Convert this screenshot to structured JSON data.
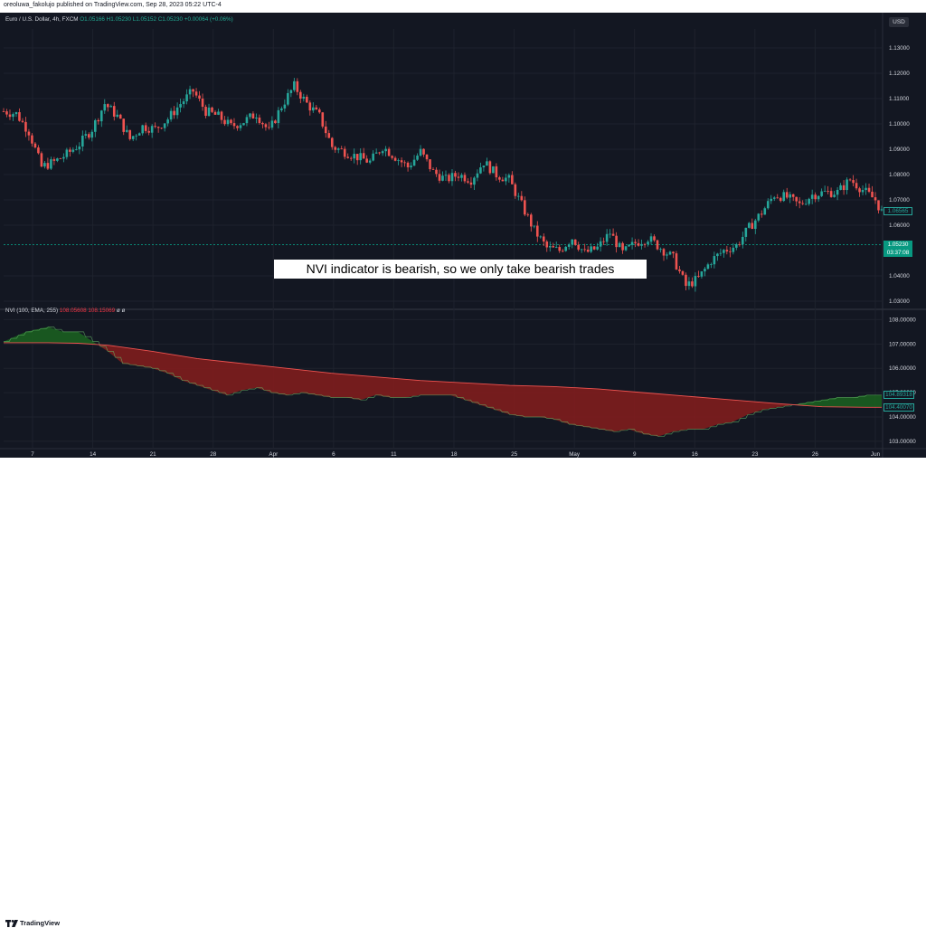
{
  "header": {
    "text": "oreoluwa_fakolujo published on TradingView.com, Sep 28, 2023 05:22 UTC-4"
  },
  "currency_badge": "USD",
  "legend_main": {
    "symbol": "Euro / U.S. Dollar, 4h, FXCM",
    "ohlc": "O1.05166 H1.05230 L1.05152 C1.05230 +0.00064 (+0.06%)"
  },
  "legend_nvi": {
    "name": "NVI (100, EMA, 255)",
    "v1": "108.05608",
    "v2": "108.15069",
    "extra": "ø ø"
  },
  "annotation": "NVI indicator is bearish, so we only take bearish trades",
  "footer": {
    "brand": "TradingView"
  },
  "colors": {
    "background": "#131722",
    "bullish": "#26a69a",
    "bearish": "#ef5350",
    "nvi_bull_fill": "#1b5e20",
    "nvi_bear_fill": "#7f1d1d",
    "grid": "#1e222d",
    "axis_text": "#d1d4dc"
  },
  "price_tags": [
    {
      "label": "1.06565",
      "price": 1.06565,
      "color": "#26a69a",
      "style": "outline"
    },
    {
      "label": "1.05230",
      "sub": "03:37:08",
      "price": 1.0523,
      "color": "#089981",
      "style": "solid"
    }
  ],
  "nvi_tags": [
    {
      "label": "104.89318",
      "value": 104.89318,
      "color": "#26a69a"
    },
    {
      "label": "104.40070",
      "value": 104.4007,
      "color": "#26a69a"
    }
  ],
  "chart_data": [
    {
      "type": "candlestick",
      "title": "",
      "x_ticks": [
        "7",
        "14",
        "21",
        "28",
        "Apr",
        "6",
        "11",
        "18",
        "25",
        "May",
        "9",
        "16",
        "23",
        "26",
        "Jun"
      ],
      "y_ticks": [
        "1.13000",
        "1.12000",
        "1.11000",
        "1.10000",
        "1.09000",
        "1.08000",
        "1.07000",
        "1.06000",
        "1.04000",
        "1.03000"
      ],
      "ylim": [
        1.0275,
        1.1375
      ],
      "grid": true,
      "close_path": [
        [
          0,
          1.105
        ],
        [
          2,
          1.104
        ],
        [
          4,
          1.097
        ],
        [
          6,
          1.083
        ],
        [
          8,
          1.085
        ],
        [
          10,
          1.088
        ],
        [
          12,
          1.092
        ],
        [
          14,
          1.098
        ],
        [
          16,
          1.108
        ],
        [
          18,
          1.103
        ],
        [
          20,
          1.094
        ],
        [
          22,
          1.099
        ],
        [
          24,
          1.098
        ],
        [
          26,
          1.102
        ],
        [
          28,
          1.108
        ],
        [
          30,
          1.113
        ],
        [
          32,
          1.105
        ],
        [
          34,
          1.103
        ],
        [
          36,
          1.099
        ],
        [
          38,
          1.101
        ],
        [
          40,
          1.104
        ],
        [
          42,
          1.097
        ],
        [
          44,
          1.107
        ],
        [
          46,
          1.115
        ],
        [
          48,
          1.108
        ],
        [
          50,
          1.103
        ],
        [
          52,
          1.091
        ],
        [
          54,
          1.089
        ],
        [
          56,
          1.087
        ],
        [
          58,
          1.085
        ],
        [
          60,
          1.091
        ],
        [
          62,
          1.087
        ],
        [
          64,
          1.083
        ],
        [
          66,
          1.089
        ],
        [
          68,
          1.081
        ],
        [
          70,
          1.078
        ],
        [
          72,
          1.08
        ],
        [
          74,
          1.078
        ],
        [
          76,
          1.085
        ],
        [
          78,
          1.08
        ],
        [
          80,
          1.078
        ],
        [
          82,
          1.068
        ],
        [
          84,
          1.058
        ],
        [
          86,
          1.051
        ],
        [
          88,
          1.05
        ],
        [
          90,
          1.055
        ],
        [
          92,
          1.049
        ],
        [
          94,
          1.051
        ],
        [
          96,
          1.057
        ],
        [
          98,
          1.049
        ],
        [
          100,
          1.053
        ],
        [
          102,
          1.055
        ],
        [
          104,
          1.051
        ],
        [
          106,
          1.047
        ],
        [
          108,
          1.036
        ],
        [
          110,
          1.039
        ],
        [
          112,
          1.046
        ],
        [
          114,
          1.05
        ],
        [
          116,
          1.052
        ],
        [
          118,
          1.059
        ],
        [
          120,
          1.065
        ],
        [
          122,
          1.072
        ],
        [
          124,
          1.071
        ],
        [
          126,
          1.068
        ],
        [
          128,
          1.072
        ],
        [
          130,
          1.073
        ],
        [
          132,
          1.073
        ],
        [
          134,
          1.078
        ],
        [
          136,
          1.074
        ],
        [
          138,
          1.07
        ],
        [
          139,
          1.0652
        ]
      ],
      "last_price": 1.0523
    },
    {
      "type": "area",
      "title": "NVI (100, EMA, 255)",
      "y_ticks": [
        "108.00000",
        "107.00000",
        "106.00000",
        "105.00000",
        "104.00000",
        "103.00000"
      ],
      "ylim": [
        102.7,
        108.35
      ],
      "grid": true,
      "series": [
        {
          "name": "108.05608",
          "values": [
            [
              0,
              107.1
            ],
            [
              3,
              107.5
            ],
            [
              6,
              107.7
            ],
            [
              8,
              107.5
            ],
            [
              10,
              107.5
            ],
            [
              12,
              107.1
            ],
            [
              14,
              106.7
            ],
            [
              16,
              106.2
            ],
            [
              18,
              106.1
            ],
            [
              20,
              106.0
            ],
            [
              22,
              105.8
            ],
            [
              24,
              105.5
            ],
            [
              26,
              105.3
            ],
            [
              28,
              105.1
            ],
            [
              30,
              104.9
            ],
            [
              32,
              105.1
            ],
            [
              34,
              105.2
            ],
            [
              36,
              105.0
            ],
            [
              38,
              104.9
            ],
            [
              40,
              105.0
            ],
            [
              42,
              104.9
            ],
            [
              44,
              104.8
            ],
            [
              46,
              104.8
            ],
            [
              48,
              104.7
            ],
            [
              50,
              104.9
            ],
            [
              52,
              104.8
            ],
            [
              54,
              104.8
            ],
            [
              56,
              104.9
            ],
            [
              58,
              104.9
            ],
            [
              60,
              104.9
            ],
            [
              62,
              104.7
            ],
            [
              64,
              104.5
            ],
            [
              66,
              104.3
            ],
            [
              68,
              104.1
            ],
            [
              70,
              104.0
            ],
            [
              72,
              104.0
            ],
            [
              74,
              103.9
            ],
            [
              76,
              103.7
            ],
            [
              78,
              103.6
            ],
            [
              80,
              103.5
            ],
            [
              82,
              103.4
            ],
            [
              84,
              103.5
            ],
            [
              86,
              103.3
            ],
            [
              88,
              103.2
            ],
            [
              90,
              103.4
            ],
            [
              92,
              103.5
            ],
            [
              94,
              103.5
            ],
            [
              96,
              103.7
            ],
            [
              98,
              103.8
            ],
            [
              100,
              104.1
            ],
            [
              102,
              104.3
            ],
            [
              104,
              104.4
            ],
            [
              106,
              104.5
            ],
            [
              108,
              104.6
            ],
            [
              110,
              104.7
            ],
            [
              112,
              104.8
            ],
            [
              114,
              104.8
            ],
            [
              116,
              104.9
            ],
            [
              118,
              104.9
            ]
          ]
        },
        {
          "name": "108.15069",
          "values": [
            [
              0,
              107.05
            ],
            [
              6,
              107.05
            ],
            [
              10,
              107.03
            ],
            [
              14,
              106.95
            ],
            [
              20,
              106.7
            ],
            [
              26,
              106.4
            ],
            [
              32,
              106.2
            ],
            [
              38,
              106.0
            ],
            [
              44,
              105.8
            ],
            [
              50,
              105.65
            ],
            [
              56,
              105.5
            ],
            [
              62,
              105.4
            ],
            [
              68,
              105.3
            ],
            [
              74,
              105.25
            ],
            [
              80,
              105.15
            ],
            [
              86,
              105.0
            ],
            [
              92,
              104.85
            ],
            [
              98,
              104.7
            ],
            [
              104,
              104.55
            ],
            [
              110,
              104.42
            ],
            [
              116,
              104.4
            ],
            [
              118,
              104.4
            ]
          ]
        }
      ]
    }
  ]
}
